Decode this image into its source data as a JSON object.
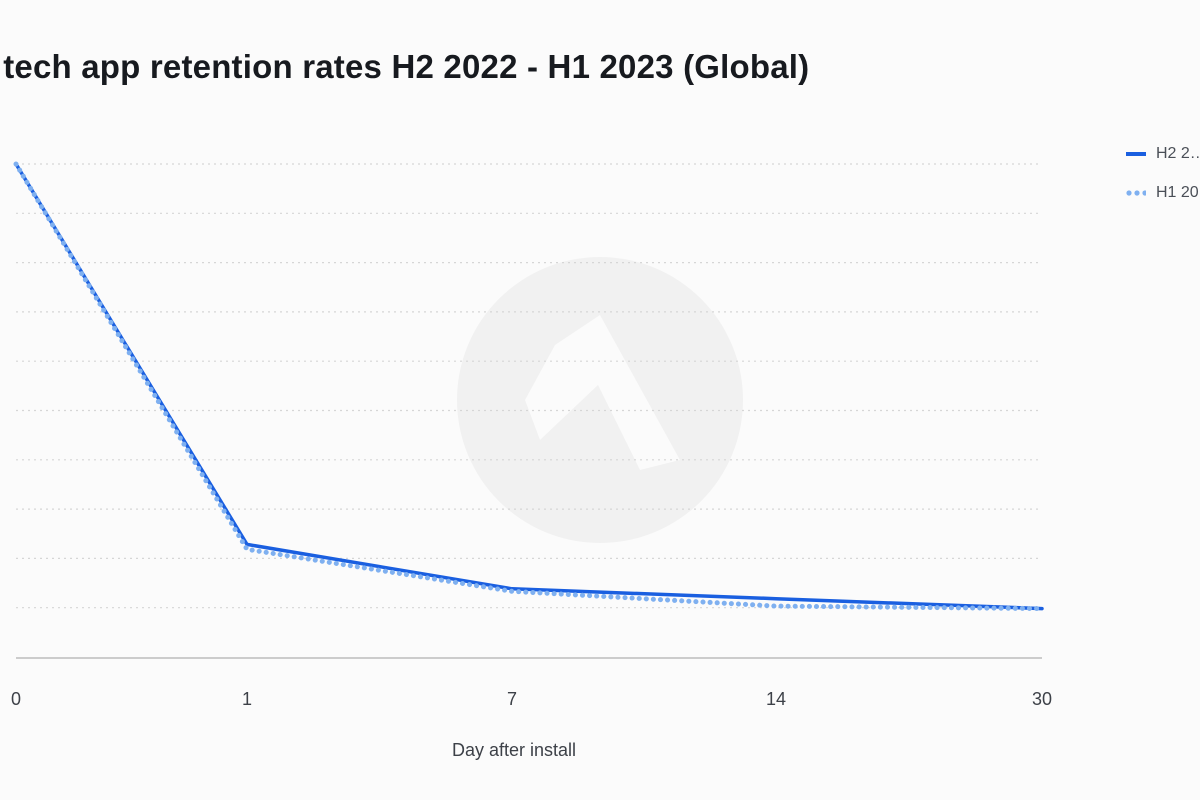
{
  "chart_data": {
    "type": "line",
    "title": "…tech app retention rates H2 2022 - H1 2023 (Global)",
    "xlabel": "Day after install",
    "ylabel": "",
    "categories": [
      "0",
      "1",
      "7",
      "14",
      "30"
    ],
    "ylim": [
      0,
      100
    ],
    "grid": true,
    "legend_position": "top-right",
    "series": [
      {
        "name": "H2 2…",
        "color": "#1a5fe0",
        "style": "solid",
        "values": [
          100,
          23,
          14,
          12,
          10
        ]
      },
      {
        "name": "H1 20…",
        "color": "#7fb0f0",
        "style": "dotted",
        "values": [
          100,
          22,
          13.5,
          10.5,
          10
        ]
      }
    ]
  }
}
